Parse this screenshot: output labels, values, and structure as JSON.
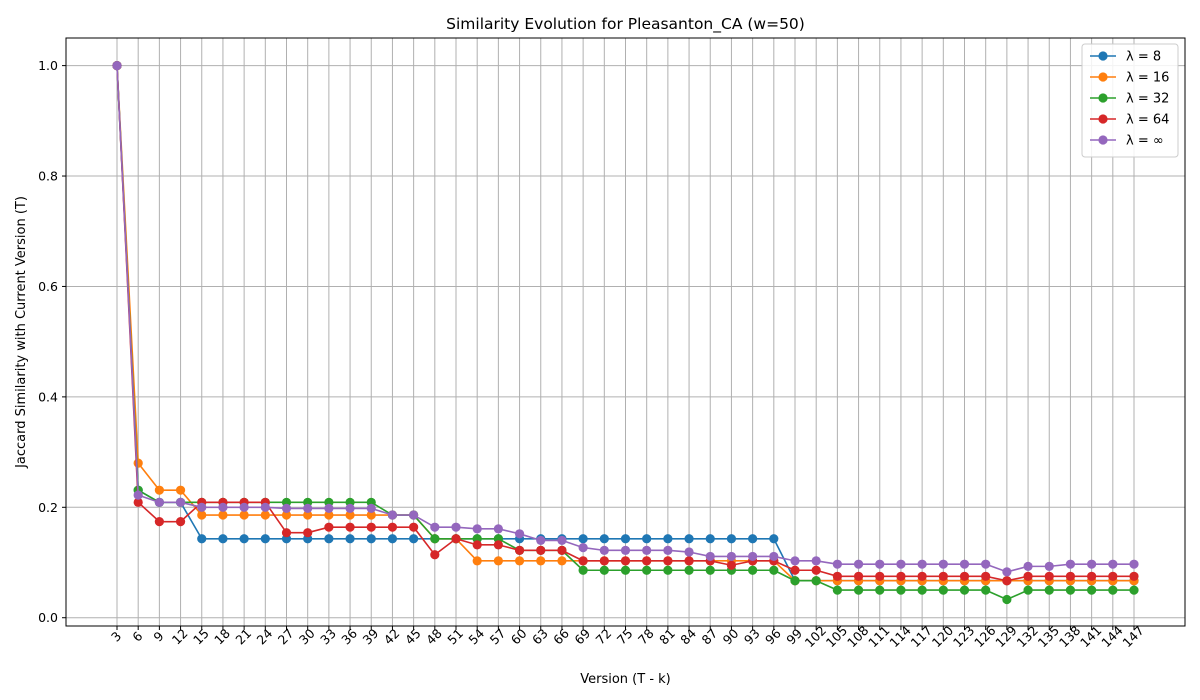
{
  "chart_data": {
    "type": "line",
    "title": "Similarity Evolution for Pleasanton_CA (w=50)",
    "xlabel": "Version (T - k)",
    "ylabel": "Jaccard Similarity with Current Version (T)",
    "x": [
      3,
      6,
      9,
      12,
      15,
      18,
      21,
      24,
      27,
      30,
      33,
      36,
      39,
      42,
      45,
      48,
      51,
      54,
      57,
      60,
      63,
      66,
      69,
      72,
      75,
      78,
      81,
      84,
      87,
      90,
      93,
      96,
      99,
      102,
      105,
      108,
      111,
      114,
      117,
      120,
      123,
      126,
      129,
      132,
      135,
      138,
      141,
      144,
      147
    ],
    "ylim": [
      -0.015,
      1.05
    ],
    "yticks": [
      0.0,
      0.2,
      0.4,
      0.6,
      0.8,
      1.0
    ],
    "ytick_labels": [
      "0.0",
      "0.2",
      "0.4",
      "0.6",
      "0.8",
      "1.0"
    ],
    "grid": true,
    "legend_position": "top-right",
    "series": [
      {
        "name": "λ = 8",
        "color": "#1f77b4",
        "values": [
          1.0,
          0.231,
          0.209,
          0.209,
          0.143,
          0.143,
          0.143,
          0.143,
          0.143,
          0.143,
          0.143,
          0.143,
          0.143,
          0.143,
          0.143,
          0.143,
          0.143,
          0.143,
          0.143,
          0.143,
          0.143,
          0.143,
          0.143,
          0.143,
          0.143,
          0.143,
          0.143,
          0.143,
          0.143,
          0.143,
          0.143,
          0.143,
          0.067,
          0.067,
          0.067,
          0.067,
          0.067,
          0.067,
          0.067,
          0.067,
          0.067,
          0.067,
          0.067,
          0.067,
          0.067,
          0.067,
          0.067,
          0.067,
          0.067
        ]
      },
      {
        "name": "λ = 16",
        "color": "#ff7f0e",
        "values": [
          1.0,
          0.28,
          0.231,
          0.231,
          0.186,
          0.186,
          0.186,
          0.186,
          0.186,
          0.186,
          0.186,
          0.186,
          0.186,
          0.186,
          0.186,
          0.143,
          0.143,
          0.103,
          0.103,
          0.103,
          0.103,
          0.103,
          0.103,
          0.103,
          0.103,
          0.103,
          0.103,
          0.103,
          0.103,
          0.103,
          0.103,
          0.103,
          0.067,
          0.067,
          0.067,
          0.067,
          0.067,
          0.067,
          0.067,
          0.067,
          0.067,
          0.067,
          0.067,
          0.067,
          0.067,
          0.067,
          0.067,
          0.067,
          0.067
        ]
      },
      {
        "name": "λ = 32",
        "color": "#2ca02c",
        "values": [
          1.0,
          0.231,
          0.209,
          0.209,
          0.209,
          0.209,
          0.209,
          0.209,
          0.209,
          0.209,
          0.209,
          0.209,
          0.209,
          0.186,
          0.186,
          0.143,
          0.143,
          0.143,
          0.143,
          0.122,
          0.122,
          0.122,
          0.086,
          0.086,
          0.086,
          0.086,
          0.086,
          0.086,
          0.086,
          0.086,
          0.086,
          0.086,
          0.067,
          0.067,
          0.05,
          0.05,
          0.05,
          0.05,
          0.05,
          0.05,
          0.05,
          0.05,
          0.033,
          0.05,
          0.05,
          0.05,
          0.05,
          0.05,
          0.05
        ]
      },
      {
        "name": "λ = 64",
        "color": "#d62728",
        "values": [
          1.0,
          0.209,
          0.174,
          0.174,
          0.209,
          0.209,
          0.209,
          0.209,
          0.154,
          0.154,
          0.164,
          0.164,
          0.164,
          0.164,
          0.164,
          0.114,
          0.143,
          0.132,
          0.132,
          0.122,
          0.122,
          0.122,
          0.103,
          0.103,
          0.103,
          0.103,
          0.103,
          0.103,
          0.103,
          0.095,
          0.103,
          0.103,
          0.086,
          0.086,
          0.075,
          0.075,
          0.075,
          0.075,
          0.075,
          0.075,
          0.075,
          0.075,
          0.067,
          0.075,
          0.075,
          0.075,
          0.075,
          0.075,
          0.075
        ]
      },
      {
        "name": "λ = ∞",
        "color": "#9467bd",
        "values": [
          1.0,
          0.222,
          0.209,
          0.209,
          0.2,
          0.2,
          0.2,
          0.2,
          0.198,
          0.198,
          0.198,
          0.198,
          0.198,
          0.186,
          0.186,
          0.164,
          0.164,
          0.161,
          0.161,
          0.152,
          0.14,
          0.14,
          0.127,
          0.122,
          0.122,
          0.122,
          0.122,
          0.119,
          0.111,
          0.111,
          0.111,
          0.111,
          0.103,
          0.103,
          0.097,
          0.097,
          0.097,
          0.097,
          0.097,
          0.097,
          0.097,
          0.097,
          0.083,
          0.093,
          0.093,
          0.097,
          0.097,
          0.097,
          0.097
        ]
      }
    ]
  }
}
